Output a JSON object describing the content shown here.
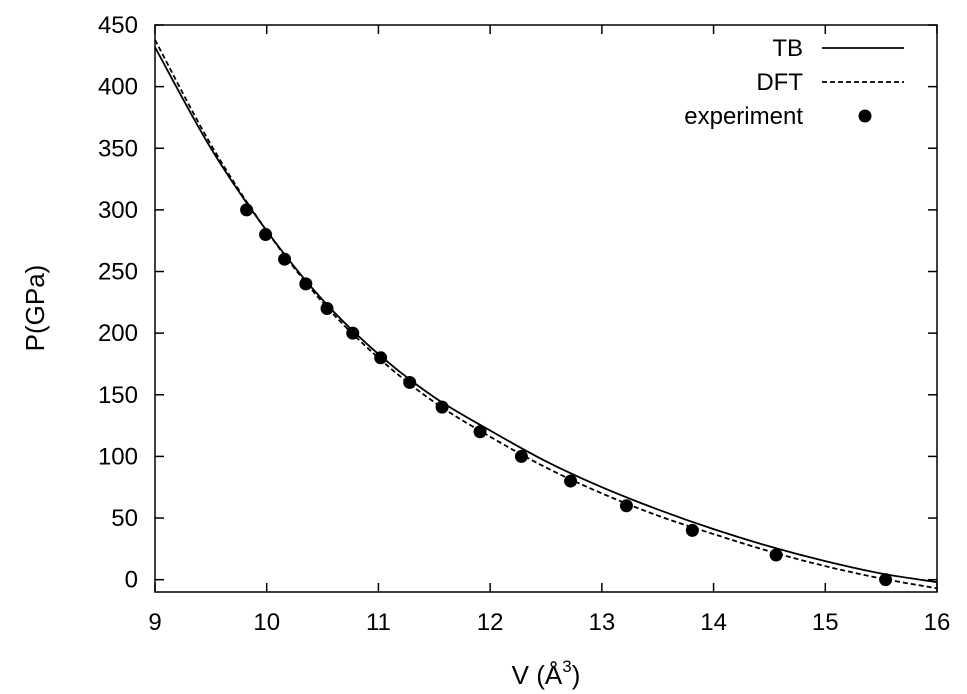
{
  "chart_data": {
    "type": "line",
    "xlabel": "V (Å",
    "xlabel_sup": "3",
    "xlabel_close": ")",
    "ylabel": "P(GPa)",
    "xlim": [
      9,
      16
    ],
    "ylim": [
      -10,
      450
    ],
    "x_ticks": [
      "9",
      "10",
      "11",
      "12",
      "13",
      "14",
      "15",
      "16"
    ],
    "y_ticks": [
      "0",
      "50",
      "100",
      "150",
      "200",
      "250",
      "300",
      "350",
      "400",
      "450"
    ],
    "legend_position": "top-right",
    "grid": false,
    "series": [
      {
        "name": "TB",
        "style": "solid",
        "x": [
          9,
          9.5,
          10,
          10.5,
          11,
          11.5,
          12,
          12.5,
          13,
          13.5,
          14,
          14.5,
          15,
          15.5,
          16
        ],
        "y": [
          432,
          350,
          283,
          227,
          183,
          148,
          121,
          96,
          75,
          57,
          41,
          27,
          15,
          5,
          -2
        ]
      },
      {
        "name": "DFT",
        "style": "dashed",
        "x": [
          9,
          9.5,
          10,
          10.5,
          11,
          11.5,
          12,
          12.5,
          13,
          13.5,
          14,
          14.5,
          15,
          15.5,
          16
        ],
        "y": [
          438,
          353,
          283,
          225,
          180,
          144,
          116,
          91,
          70,
          52,
          37,
          23,
          11,
          1,
          -7
        ]
      },
      {
        "name": "experiment",
        "style": "points",
        "x": [
          9.82,
          9.99,
          10.16,
          10.35,
          10.54,
          10.77,
          11.02,
          11.28,
          11.57,
          11.91,
          12.28,
          12.72,
          13.22,
          13.81,
          14.56,
          15.54
        ],
        "y": [
          300,
          280,
          260,
          240,
          220,
          200,
          180,
          160,
          140,
          120,
          100,
          80,
          60,
          40,
          20,
          0
        ]
      }
    ]
  }
}
